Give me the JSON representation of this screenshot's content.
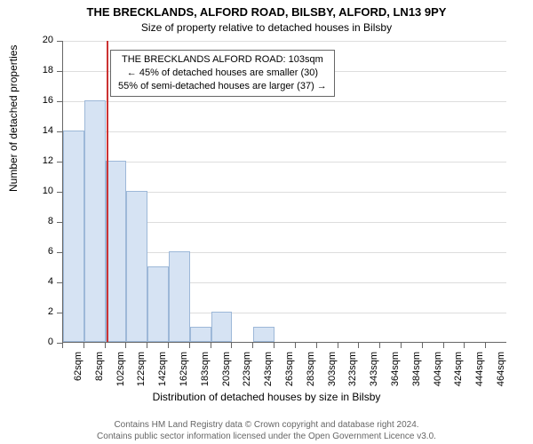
{
  "titles": {
    "line1": "THE BRECKLANDS, ALFORD ROAD, BILSBY, ALFORD, LN13 9PY",
    "line2": "Size of property relative to detached houses in Bilsby"
  },
  "axes": {
    "y_title": "Number of detached properties",
    "x_title": "Distribution of detached houses by size in Bilsby",
    "ymin": 0,
    "ymax": 20,
    "ytick_step": 2,
    "y_label_fontsize": 11,
    "x_label_fontsize": 11,
    "axis_title_fontsize": 12,
    "grid_color": "#dddddd",
    "axis_color": "#666666"
  },
  "chart": {
    "type": "histogram",
    "background_color": "#ffffff",
    "bar_fill": "#d6e3f3",
    "bar_border": "#9db8d8",
    "categories": [
      "62sqm",
      "82sqm",
      "102sqm",
      "122sqm",
      "142sqm",
      "162sqm",
      "183sqm",
      "203sqm",
      "223sqm",
      "243sqm",
      "263sqm",
      "283sqm",
      "303sqm",
      "323sqm",
      "343sqm",
      "364sqm",
      "384sqm",
      "404sqm",
      "424sqm",
      "444sqm",
      "464sqm"
    ],
    "values": [
      14,
      16,
      12,
      10,
      5,
      6,
      1,
      2,
      0,
      1,
      0,
      0,
      0,
      0,
      0,
      0,
      0,
      0,
      0,
      0,
      0
    ]
  },
  "marker": {
    "color": "#cc3333",
    "category_index": 2,
    "fraction_within_bin": 0.05,
    "value_sqm": 103
  },
  "annotation": {
    "line1": "THE BRECKLANDS ALFORD ROAD: 103sqm",
    "line2": "← 45% of detached houses are smaller (30)",
    "line3": "55% of semi-detached houses are larger (37) →",
    "border_color": "#666666",
    "fontsize": 11
  },
  "footer": {
    "line1": "Contains HM Land Registry data © Crown copyright and database right 2024.",
    "line2": "Contains public sector information licensed under the Open Government Licence v3.0."
  }
}
